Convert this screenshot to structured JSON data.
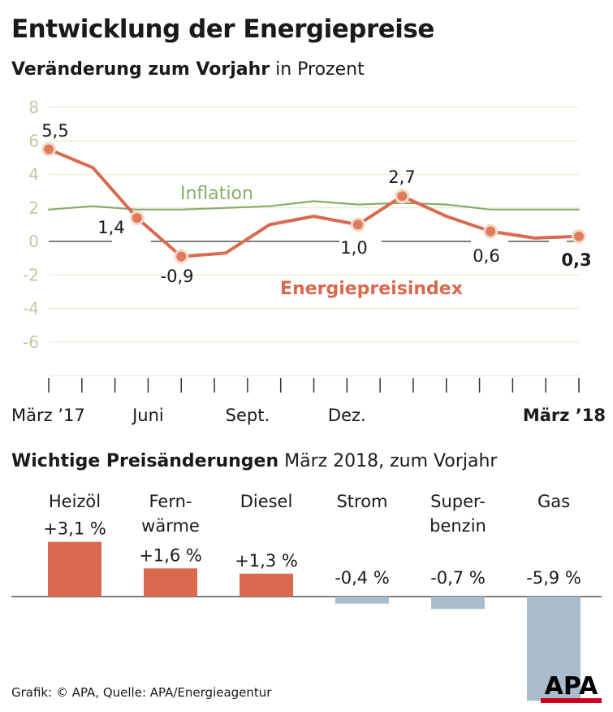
{
  "header": {
    "title": "Entwicklung der Energiepreise",
    "subtitle_bold": "Veränderung zum Vorjahr",
    "subtitle_rest": " in Prozent"
  },
  "chart_data": [
    {
      "type": "line",
      "title": "Veränderung zum Vorjahr in Prozent",
      "ylim": [
        -8,
        8
      ],
      "yticks": [
        "8",
        "6",
        "4",
        "2",
        "0",
        "-2",
        "-4",
        "-6"
      ],
      "ytick_values": [
        8,
        6,
        4,
        2,
        0,
        -2,
        -4,
        -6
      ],
      "months": 17,
      "xtick_labels": [
        {
          "index": 0,
          "label": "März ’17",
          "bold": false
        },
        {
          "index": 3,
          "label": "Juni",
          "bold": false
        },
        {
          "index": 6,
          "label": "Sept.",
          "bold": false
        },
        {
          "index": 9,
          "label": "Dez.",
          "bold": false
        },
        {
          "index": 12,
          "label": "März ’18",
          "bold": true
        }
      ],
      "series": [
        {
          "name": "Inflation",
          "color": "#8aac6b",
          "values": [
            1.9,
            2.1,
            1.9,
            1.9,
            2.0,
            2.1,
            2.4,
            2.2,
            2.3,
            2.2,
            1.9,
            1.9,
            1.9
          ]
        },
        {
          "name": "Energiepreisindex",
          "color": "#d96a4f",
          "values": [
            5.5,
            4.4,
            1.4,
            -0.9,
            -0.7,
            1.0,
            1.5,
            1.0,
            2.7,
            1.5,
            0.6,
            0.2,
            0.3
          ]
        }
      ],
      "point_labels": [
        {
          "index": 0,
          "text": "5,5",
          "bold": false
        },
        {
          "index": 2,
          "text": "1,4",
          "bold": false
        },
        {
          "index": 3,
          "text": "-0,9",
          "bold": false
        },
        {
          "index": 7,
          "text": "1,0",
          "bold": false
        },
        {
          "index": 8,
          "text": "2,7",
          "bold": false
        },
        {
          "index": 10,
          "text": "0,6",
          "bold": false
        },
        {
          "index": 12,
          "text": "0,3",
          "bold": true
        }
      ],
      "markers": [
        0,
        2,
        3,
        7,
        8,
        10,
        12
      ]
    },
    {
      "type": "bar",
      "title": "Wichtige Preisänderungen März 2018, zum Vorjahr",
      "categories": [
        [
          "Heizöl"
        ],
        [
          "Fern-",
          "wärme"
        ],
        [
          "Diesel"
        ],
        [
          "Strom"
        ],
        [
          "Super-",
          "benzin"
        ],
        [
          "Gas"
        ]
      ],
      "values": [
        3.1,
        1.6,
        1.3,
        -0.4,
        -0.7,
        -5.9
      ],
      "value_labels": [
        "+3,1 %",
        "+1,6 %",
        "+1,3 %",
        "-0,4 %",
        "-0,7 %",
        "-5,9 %"
      ],
      "colors": {
        "positive": "#d96a4f",
        "negative": "#a9bccb"
      }
    }
  ],
  "section2": {
    "title_bold": "Wichtige Preisänderungen",
    "title_rest": " März 2018, zum Vorjahr"
  },
  "footer": {
    "text": "Grafik: © APA, Quelle: APA/Energieagentur",
    "logo": "APA"
  }
}
